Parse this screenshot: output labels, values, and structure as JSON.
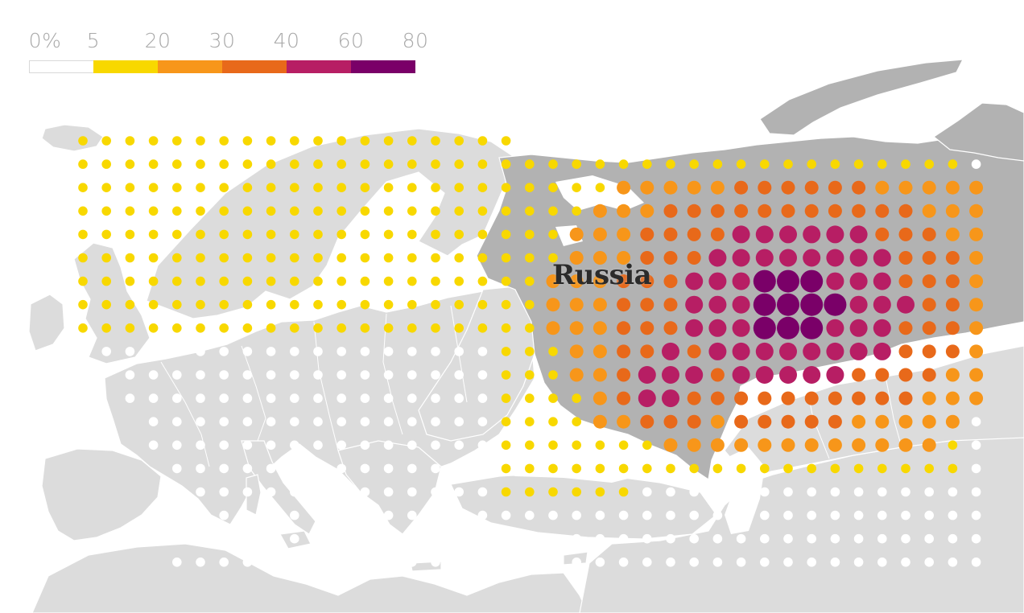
{
  "legend": {
    "labels": [
      "0%",
      "5",
      "20",
      "30",
      "40",
      "60",
      "80"
    ],
    "bins": [
      {
        "from": 0,
        "to": 5,
        "color": "#ffffff",
        "border": "#d9d9d9"
      },
      {
        "from": 5,
        "to": 20,
        "color": "#f8d800"
      },
      {
        "from": 20,
        "to": 30,
        "color": "#f7961a"
      },
      {
        "from": 30,
        "to": 40,
        "color": "#e8691a"
      },
      {
        "from": 40,
        "to": 60,
        "color": "#b71e64"
      },
      {
        "from": 60,
        "to": 80,
        "color": "#7a0068"
      }
    ]
  },
  "map": {
    "highlighted_country": "Russia",
    "colors": {
      "land": "#dcdcdc",
      "highlighted_land": "#b2b2b2",
      "sea": "#ffffff",
      "borders": "#ffffff"
    }
  }
}
